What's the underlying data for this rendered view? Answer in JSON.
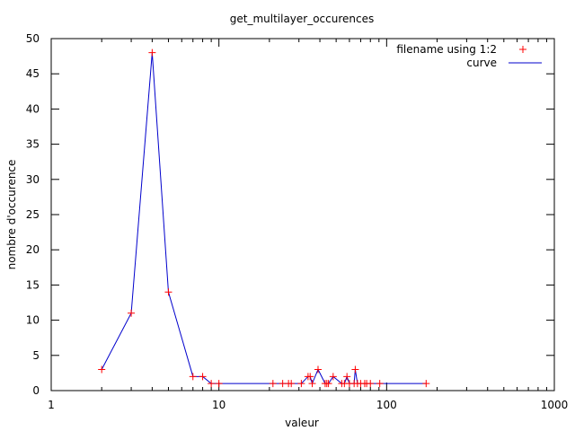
{
  "chart_data": {
    "type": "line",
    "title": "get_multilayer_occurences",
    "xlabel": "valeur",
    "ylabel": "nombre d'occurence",
    "xscale": "log",
    "xlim": [
      1,
      1000
    ],
    "ylim": [
      0,
      50
    ],
    "x_ticks": [
      1,
      10,
      100,
      1000
    ],
    "x_tick_labels": [
      "1",
      "10",
      "100",
      "1000"
    ],
    "y_ticks": [
      0,
      5,
      10,
      15,
      20,
      25,
      30,
      35,
      40,
      45,
      50
    ],
    "y_tick_labels": [
      "0",
      "5",
      "10",
      "15",
      "20",
      "25",
      "30",
      "35",
      "40",
      "45",
      "50"
    ],
    "grid": false,
    "legend_position": "top-right",
    "colors": {
      "points": "#ff0000",
      "curve": "#0000cc",
      "axes": "#000000"
    },
    "series": [
      {
        "name": "filename using 1:2",
        "style": "points",
        "x": [
          2,
          3,
          4,
          5,
          7,
          8,
          9,
          10,
          21,
          24,
          26,
          27,
          31,
          34,
          35,
          36,
          39,
          43,
          44,
          45,
          48,
          54,
          56,
          58,
          60,
          64,
          65,
          67,
          70,
          74,
          76,
          80,
          91,
          172
        ],
        "y": [
          3,
          11,
          48,
          14,
          2,
          2,
          1,
          1,
          1,
          1,
          1,
          1,
          1,
          2,
          2,
          1,
          3,
          1,
          1,
          1,
          2,
          1,
          1,
          2,
          1,
          1,
          3,
          1,
          1,
          1,
          1,
          1,
          1,
          1
        ]
      },
      {
        "name": "curve",
        "style": "line",
        "x": [
          2,
          3,
          4,
          5,
          7,
          8,
          9,
          10,
          21,
          24,
          26,
          27,
          31,
          34,
          35,
          36,
          39,
          43,
          44,
          45,
          48,
          54,
          56,
          58,
          60,
          64,
          65,
          67,
          70,
          74,
          76,
          80,
          91,
          172
        ],
        "y": [
          3,
          11,
          48,
          14,
          2,
          2,
          1,
          1,
          1,
          1,
          1,
          1,
          1,
          2,
          2,
          1,
          3,
          1,
          1,
          1,
          2,
          1,
          1,
          2,
          1,
          1,
          3,
          1,
          1,
          1,
          1,
          1,
          1,
          1
        ]
      }
    ]
  }
}
